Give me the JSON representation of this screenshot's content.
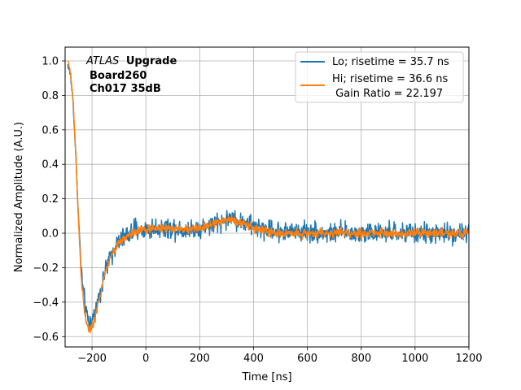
{
  "chart_data": {
    "type": "line",
    "title": "",
    "xlabel": "Time [ns]",
    "ylabel": "Normalized Amplitude (A.U.)",
    "xlim": [
      -300,
      1200
    ],
    "ylim": [
      -0.66,
      1.08
    ],
    "xticks": [
      -200,
      0,
      200,
      400,
      600,
      800,
      1000,
      1200
    ],
    "yticks": [
      -0.6,
      -0.4,
      -0.2,
      0.0,
      0.2,
      0.4,
      0.6,
      0.8,
      1.0
    ],
    "xtick_labels": [
      "−200",
      "0",
      "200",
      "400",
      "600",
      "800",
      "1000",
      "1200"
    ],
    "ytick_labels": [
      "−0.6",
      "−0.4",
      "−0.2",
      "0.0",
      "0.2",
      "0.4",
      "0.6",
      "0.8",
      "1.0"
    ],
    "grid": true,
    "annotation": {
      "experiment": "ATLAS",
      "upgrade": "Upgrade",
      "board": "Board260",
      "channel": "Ch017 35dB"
    },
    "legend": {
      "location": "upper right",
      "entries": [
        {
          "label": "Lo; risetime = 35.7 ns",
          "extra": ""
        },
        {
          "label": "Hi; risetime = 36.6 ns",
          "extra": " Gain Ratio = 22.197"
        }
      ]
    },
    "series": [
      {
        "name": "Lo",
        "color": "#1f77b4",
        "noise": 0.055,
        "x": [
          -290,
          -280,
          -270,
          -260,
          -250,
          -240,
          -230,
          -220,
          -210,
          -200,
          -190,
          -180,
          -170,
          -160,
          -150,
          -140,
          -130,
          -120,
          -100,
          -80,
          -60,
          -40,
          -20,
          0,
          50,
          100,
          150,
          200,
          250,
          280,
          300,
          320,
          350,
          400,
          450,
          500,
          600,
          700,
          800,
          900,
          1000,
          1100,
          1200
        ],
        "y": [
          0.98,
          0.92,
          0.75,
          0.45,
          0.08,
          -0.22,
          -0.38,
          -0.48,
          -0.52,
          -0.51,
          -0.46,
          -0.4,
          -0.34,
          -0.27,
          -0.22,
          -0.17,
          -0.13,
          -0.09,
          -0.05,
          -0.02,
          0.0,
          0.02,
          0.02,
          0.02,
          0.03,
          0.03,
          0.02,
          0.03,
          0.05,
          0.07,
          0.08,
          0.09,
          0.07,
          0.04,
          0.02,
          0.01,
          0.01,
          0.0,
          0.0,
          0.0,
          0.0,
          0.0,
          0.0
        ]
      },
      {
        "name": "Hi",
        "color": "#ff7f0e",
        "noise": 0.025,
        "x": [
          -290,
          -280,
          -270,
          -260,
          -250,
          -240,
          -230,
          -220,
          -210,
          -200,
          -190,
          -180,
          -170,
          -160,
          -150,
          -140,
          -130,
          -120,
          -100,
          -80,
          -60,
          -40,
          -20,
          0,
          50,
          100,
          150,
          200,
          250,
          280,
          300,
          320,
          350,
          400,
          450,
          500,
          600,
          700,
          800,
          900,
          1000,
          1100,
          1200
        ],
        "y": [
          1.0,
          0.93,
          0.76,
          0.45,
          0.06,
          -0.26,
          -0.43,
          -0.53,
          -0.56,
          -0.55,
          -0.5,
          -0.43,
          -0.36,
          -0.29,
          -0.23,
          -0.18,
          -0.14,
          -0.1,
          -0.06,
          -0.03,
          -0.01,
          0.01,
          0.02,
          0.02,
          0.03,
          0.03,
          0.02,
          0.03,
          0.05,
          0.07,
          0.08,
          0.08,
          0.06,
          0.03,
          0.01,
          0.0,
          0.0,
          0.0,
          0.0,
          0.0,
          0.0,
          0.0,
          0.0
        ]
      }
    ]
  }
}
